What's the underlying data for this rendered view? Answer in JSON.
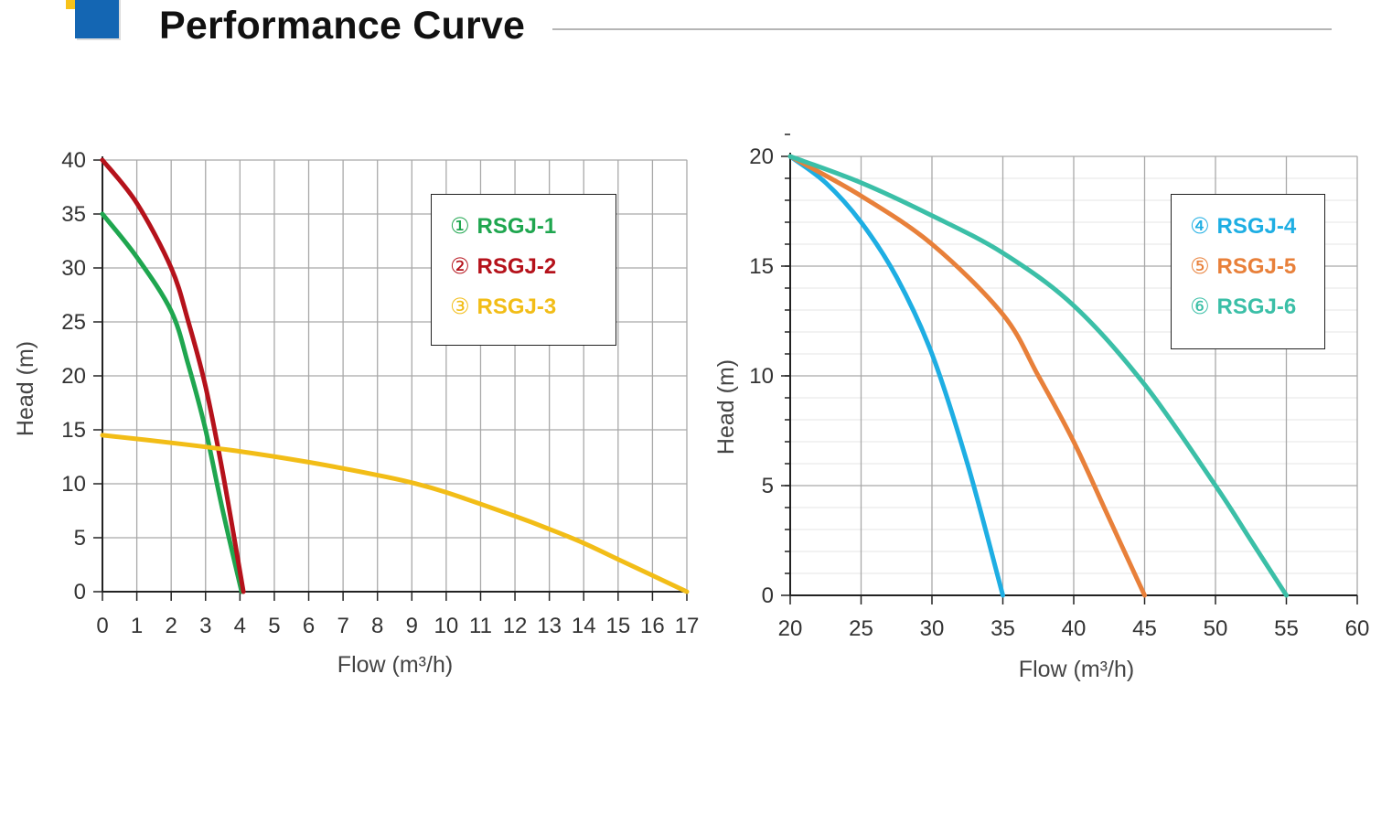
{
  "header": {
    "title": "Performance Curve"
  },
  "colors": {
    "rsgj_1": "#1fa64f",
    "rsgj_2": "#b5121b",
    "rsgj_3": "#f2bd17",
    "rsgj_4": "#1eaee3",
    "rsgj_5": "#e8803a",
    "rsgj_6": "#3bbfa7",
    "logo_yellow": "#f7c21a",
    "logo_blue": "#1466b3"
  },
  "chart_data": [
    {
      "type": "line",
      "xlabel": "Flow (m³/h)",
      "ylabel": "Head (m)",
      "xlim": [
        0,
        17
      ],
      "ylim": [
        0,
        40
      ],
      "x_ticks": [
        "0",
        "1",
        "2",
        "3",
        "4",
        "5",
        "6",
        "7",
        "8",
        "9",
        "10",
        "11",
        "12",
        "13",
        "14",
        "15",
        "16",
        "17"
      ],
      "y_ticks": [
        "0",
        "5",
        "10",
        "15",
        "20",
        "25",
        "30",
        "35",
        "40"
      ],
      "grid": true,
      "legend_position": "top-right",
      "legend": [
        {
          "marker": "①",
          "name": "RSGJ-1",
          "color": "#1fa64f"
        },
        {
          "marker": "②",
          "name": "RSGJ-2",
          "color": "#b5121b"
        },
        {
          "marker": "③",
          "name": "RSGJ-3",
          "color": "#f2bd17"
        }
      ],
      "series": [
        {
          "name": "RSGJ-1",
          "color": "#1fa64f",
          "x": [
            0,
            1,
            2,
            2.5,
            3,
            3.5,
            4.05
          ],
          "y": [
            35,
            31,
            26,
            21,
            15,
            7.5,
            0
          ]
        },
        {
          "name": "RSGJ-2",
          "color": "#b5121b",
          "x": [
            0,
            1,
            2,
            2.5,
            3,
            3.5,
            4.1
          ],
          "y": [
            40,
            36,
            30,
            25,
            19,
            11,
            0
          ]
        },
        {
          "name": "RSGJ-3",
          "color": "#f2bd17",
          "x": [
            0,
            2,
            4,
            6,
            8,
            9,
            10,
            12,
            13,
            14,
            15,
            16,
            17
          ],
          "y": [
            14.5,
            13.8,
            13,
            12,
            10.8,
            10.1,
            9.2,
            7,
            5.8,
            4.5,
            3,
            1.5,
            0
          ]
        }
      ]
    },
    {
      "type": "line",
      "xlabel": "Flow (m³/h)",
      "ylabel": "Head (m)",
      "xlim": [
        20,
        60
      ],
      "ylim": [
        0,
        20
      ],
      "x_ticks": [
        "20",
        "25",
        "30",
        "35",
        "40",
        "45",
        "50",
        "55",
        "60"
      ],
      "y_ticks": [
        "0",
        "5",
        "10",
        "15",
        "20"
      ],
      "grid": true,
      "legend_position": "top-right",
      "legend": [
        {
          "marker": "④",
          "name": "RSGJ-4",
          "color": "#1eaee3"
        },
        {
          "marker": "⑤",
          "name": "RSGJ-5",
          "color": "#e8803a"
        },
        {
          "marker": "⑥",
          "name": "RSGJ-6",
          "color": "#3bbfa7"
        }
      ],
      "series": [
        {
          "name": "RSGJ-4",
          "color": "#1eaee3",
          "x": [
            20,
            22.5,
            25,
            27.5,
            30,
            32.5,
            35
          ],
          "y": [
            20,
            18.8,
            17,
            14.5,
            11,
            6,
            0
          ]
        },
        {
          "name": "RSGJ-5",
          "color": "#e8803a",
          "x": [
            20,
            25,
            30,
            35,
            37.5,
            40,
            42.5,
            45
          ],
          "y": [
            20,
            18.2,
            16,
            12.8,
            10,
            7,
            3.5,
            0
          ]
        },
        {
          "name": "RSGJ-6",
          "color": "#3bbfa7",
          "x": [
            20,
            25,
            30,
            35,
            40,
            45,
            50,
            52.5,
            55
          ],
          "y": [
            20,
            18.8,
            17.3,
            15.6,
            13.2,
            9.6,
            5,
            2.5,
            0
          ]
        }
      ]
    }
  ]
}
